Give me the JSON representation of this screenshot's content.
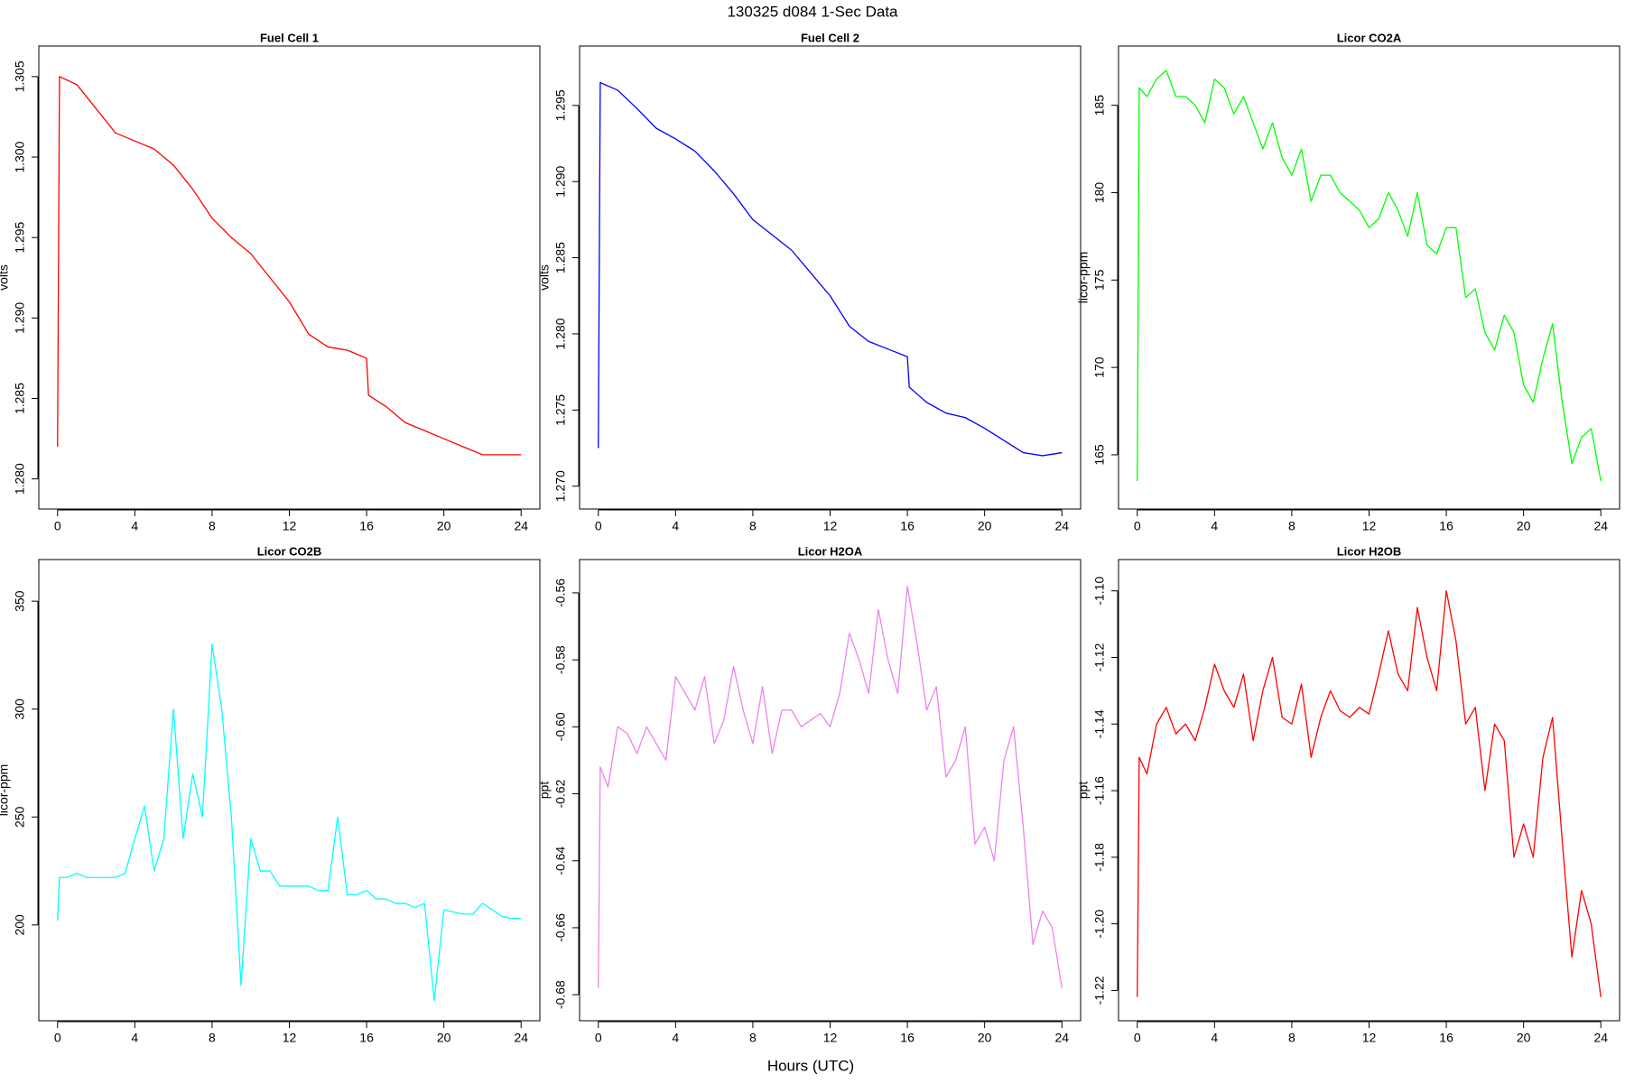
{
  "title": "130325   d084   1-Sec Data",
  "xlabel": "Hours (UTC)",
  "chart_data": [
    {
      "type": "line",
      "title": "Fuel Cell 1",
      "ylabel": "volts",
      "color": "#ff0000",
      "x": [
        0,
        0.1,
        1,
        2,
        3,
        4,
        5,
        6,
        7,
        8,
        9,
        10,
        11,
        12,
        13,
        14,
        15,
        16,
        16.1,
        17,
        18,
        19,
        20,
        21,
        22,
        23,
        24
      ],
      "values": [
        1.282,
        1.305,
        1.3045,
        1.303,
        1.3015,
        1.301,
        1.3005,
        1.2995,
        1.298,
        1.2962,
        1.295,
        1.294,
        1.2925,
        1.291,
        1.289,
        1.2882,
        1.288,
        1.2875,
        1.2852,
        1.2845,
        1.2835,
        1.283,
        1.2825,
        1.282,
        1.2815,
        1.2815,
        1.2815
      ],
      "xlim": [
        -0.97,
        24.97
      ],
      "xticks": [
        0,
        4,
        8,
        12,
        16,
        20,
        24
      ],
      "ylim": [
        1.27813,
        1.3069
      ],
      "yticks": [
        {
          "value": 1.28,
          "label": "1.280"
        },
        1.285,
        {
          "value": 1.29,
          "label": "1.290"
        },
        1.295,
        {
          "value": 1.3,
          "label": "1.300"
        },
        1.305
      ]
    },
    {
      "type": "line",
      "title": "Fuel Cell 2",
      "ylabel": "volts",
      "color": "#0000ff",
      "x": [
        0,
        0.1,
        1,
        2,
        3,
        4,
        5,
        6,
        7,
        8,
        9,
        10,
        11,
        12,
        13,
        14,
        15,
        16,
        16.1,
        17,
        18,
        19,
        20,
        21,
        22,
        23,
        24
      ],
      "values": [
        1.2725,
        1.2965,
        1.296,
        1.2948,
        1.2935,
        1.2928,
        1.292,
        1.2907,
        1.2892,
        1.2875,
        1.2865,
        1.2855,
        1.284,
        1.2825,
        1.2805,
        1.2795,
        1.279,
        1.2785,
        1.2765,
        1.2755,
        1.2748,
        1.2745,
        1.2738,
        1.273,
        1.2722,
        1.272,
        1.2722
      ],
      "xlim": [
        -0.97,
        24.97
      ],
      "xticks": [
        0,
        4,
        8,
        12,
        16,
        20,
        24
      ],
      "ylim": [
        1.2685,
        1.2989
      ],
      "yticks": [
        {
          "value": 1.27,
          "label": "1.270"
        },
        1.275,
        {
          "value": 1.28,
          "label": "1.280"
        },
        1.285,
        {
          "value": 1.29,
          "label": "1.290"
        },
        1.295
      ]
    },
    {
      "type": "line",
      "title": "Licor CO2A",
      "ylabel": "licor-ppm",
      "color": "#00ff00",
      "x": [
        0,
        0.1,
        0.5,
        1,
        1.5,
        2,
        2.5,
        3,
        3.5,
        4,
        4.5,
        5,
        5.5,
        6,
        6.5,
        7,
        7.5,
        8,
        8.5,
        9,
        9.5,
        10,
        10.5,
        11,
        11.5,
        12,
        12.5,
        13,
        13.5,
        14,
        14.5,
        15,
        15.5,
        16,
        16.5,
        17,
        17.5,
        18,
        18.5,
        19,
        19.5,
        20,
        20.5,
        21,
        21.5,
        22,
        22.5,
        23,
        23.5,
        24
      ],
      "values": [
        163.5,
        186,
        185.5,
        186.5,
        187,
        185.5,
        185.5,
        185,
        184,
        186.5,
        186,
        184.5,
        185.5,
        184,
        182.5,
        184,
        182,
        181,
        182.5,
        179.5,
        181,
        181,
        180,
        179.5,
        179,
        178,
        178.5,
        180,
        179,
        177.5,
        180,
        177,
        176.5,
        178,
        178,
        174,
        174.5,
        172,
        171,
        173,
        172,
        169,
        168,
        170.5,
        172.5,
        168,
        164.5,
        166,
        166.5,
        163.5
      ],
      "xlim": [
        -0.97,
        24.97
      ],
      "xticks": [
        0,
        4,
        8,
        12,
        16,
        20,
        24
      ],
      "ylim": [
        161.9,
        188.39
      ],
      "yticks": [
        165,
        170,
        175,
        180,
        185
      ]
    },
    {
      "type": "line",
      "title": "Licor CO2B",
      "ylabel": "licor-ppm",
      "color": "#00ffff",
      "x": [
        0,
        0.1,
        0.5,
        1,
        1.5,
        2,
        2.5,
        3,
        3.5,
        4,
        4.5,
        5,
        5.5,
        6,
        6.5,
        7,
        7.5,
        8,
        8.5,
        9,
        9.5,
        10,
        10.5,
        11,
        11.5,
        12,
        12.5,
        13,
        13.5,
        14,
        14.5,
        15,
        15.5,
        16,
        16.5,
        17,
        17.5,
        18,
        18.5,
        19,
        19.5,
        20,
        20.5,
        21,
        21.5,
        22,
        22.5,
        23,
        23.5,
        24
      ],
      "values": [
        202,
        222,
        222,
        224,
        222,
        222,
        222,
        222,
        224,
        240,
        255,
        225,
        240,
        300,
        240,
        270,
        250,
        330,
        300,
        250,
        172,
        240,
        225,
        225,
        218,
        218,
        218,
        218,
        216,
        216,
        250,
        214,
        214,
        216,
        212,
        212,
        210,
        210,
        208,
        210,
        165,
        207,
        206,
        205,
        205,
        210,
        207,
        204,
        203,
        203
      ],
      "xlim": [
        -0.97,
        24.97
      ],
      "xticks": [
        0,
        4,
        8,
        12,
        16,
        20,
        24
      ],
      "ylim": [
        155.6,
        369.3
      ],
      "yticks": [
        200,
        250,
        300,
        350
      ]
    },
    {
      "type": "line",
      "title": "Licor H2OA",
      "ylabel": "ppt",
      "color": "#ee82ee",
      "x": [
        0,
        0.1,
        0.5,
        1,
        1.5,
        2,
        2.5,
        3,
        3.5,
        4,
        4.5,
        5,
        5.5,
        6,
        6.5,
        7,
        7.5,
        8,
        8.5,
        9,
        9.5,
        10,
        10.5,
        11,
        11.5,
        12,
        12.5,
        13,
        13.5,
        14,
        14.5,
        15,
        15.5,
        16,
        16.5,
        17,
        17.5,
        18,
        18.5,
        19,
        19.5,
        20,
        20.5,
        21,
        21.5,
        22,
        22.5,
        23,
        23.5,
        24
      ],
      "values": [
        -0.678,
        -0.612,
        -0.618,
        -0.6,
        -0.602,
        -0.608,
        -0.6,
        -0.605,
        -0.61,
        -0.585,
        -0.59,
        -0.595,
        -0.585,
        -0.605,
        -0.598,
        -0.582,
        -0.595,
        -0.605,
        -0.588,
        -0.608,
        -0.595,
        -0.595,
        -0.6,
        -0.598,
        -0.596,
        -0.6,
        -0.59,
        -0.572,
        -0.58,
        -0.59,
        -0.565,
        -0.58,
        -0.59,
        -0.558,
        -0.575,
        -0.595,
        -0.588,
        -0.615,
        -0.61,
        -0.6,
        -0.635,
        -0.63,
        -0.64,
        -0.61,
        -0.6,
        -0.63,
        -0.665,
        -0.655,
        -0.66,
        -0.678
      ],
      "xlim": [
        -0.97,
        24.97
      ],
      "xticks": [
        0,
        4,
        8,
        12,
        16,
        20,
        24
      ],
      "ylim": [
        -0.68777,
        -0.55005
      ],
      "yticks": [
        -0.68,
        -0.66,
        -0.64,
        -0.62,
        {
          "value": -0.6,
          "label": "-0.60"
        },
        -0.58,
        -0.56
      ]
    },
    {
      "type": "line",
      "title": "Licor H2OB",
      "ylabel": "ppt",
      "color": "#ff0000",
      "x": [
        0,
        0.1,
        0.5,
        1,
        1.5,
        2,
        2.5,
        3,
        3.5,
        4,
        4.5,
        5,
        5.5,
        6,
        6.5,
        7,
        7.5,
        8,
        8.5,
        9,
        9.5,
        10,
        10.5,
        11,
        11.5,
        12,
        12.5,
        13,
        13.5,
        14,
        14.5,
        15,
        15.5,
        16,
        16.5,
        17,
        17.5,
        18,
        18.5,
        19,
        19.5,
        20,
        20.5,
        21,
        21.5,
        22,
        22.5,
        23,
        23.5,
        24
      ],
      "values": [
        -1.222,
        -1.15,
        -1.155,
        -1.14,
        -1.135,
        -1.143,
        -1.14,
        -1.145,
        -1.135,
        -1.122,
        -1.13,
        -1.135,
        -1.125,
        -1.145,
        -1.13,
        -1.12,
        -1.138,
        -1.14,
        -1.128,
        -1.15,
        -1.138,
        -1.13,
        -1.136,
        -1.138,
        -1.135,
        -1.137,
        -1.125,
        -1.112,
        -1.125,
        -1.13,
        -1.105,
        -1.12,
        -1.13,
        -1.1,
        -1.115,
        -1.14,
        -1.135,
        -1.16,
        -1.14,
        -1.145,
        -1.18,
        -1.17,
        -1.18,
        -1.15,
        -1.138,
        -1.175,
        -1.21,
        -1.19,
        -1.2,
        -1.222
      ],
      "xlim": [
        -0.97,
        24.97
      ],
      "xticks": [
        0,
        4,
        8,
        12,
        16,
        20,
        24
      ],
      "ylim": [
        -1.2291,
        -1.0906
      ],
      "yticks": [
        -1.22,
        {
          "value": -1.2,
          "label": "-1.20"
        },
        -1.18,
        -1.16,
        -1.14,
        -1.12,
        {
          "value": -1.1,
          "label": "-1.10"
        }
      ]
    }
  ]
}
